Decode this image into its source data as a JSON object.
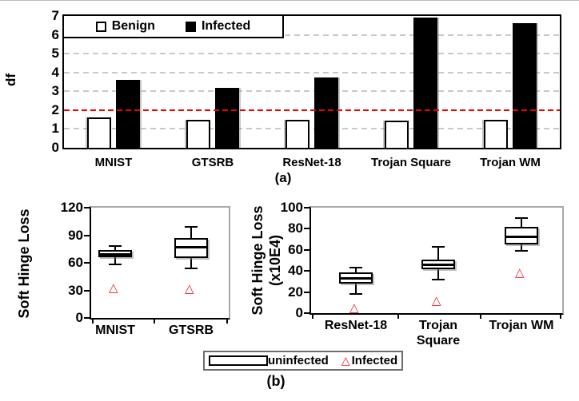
{
  "panel_a": {
    "label": "(a)"
  },
  "panel_b": {
    "label": "(b)",
    "legend": {
      "uninfected_label": "uninfected",
      "infected_label": "Infected"
    }
  },
  "icons": {
    "infected_marker_glyph": "△"
  },
  "colors": {
    "benign_bar_fill": "#ffffff",
    "infected_bar_fill": "#000000",
    "threshold_line_red": "#f00000",
    "infected_marker_red": "#ed1c24",
    "grid_gray": "#c9c9c9"
  },
  "chart_data": [
    {
      "panel": "a",
      "type": "bar",
      "ylabel": "df",
      "ylim": [
        0,
        7
      ],
      "yticks": [
        0,
        1,
        2,
        3,
        4,
        5,
        6,
        7
      ],
      "grid": "horizontal-dashed",
      "legend_position": "top-left-inside",
      "categories": [
        "MNIST",
        "GTSRB",
        "ResNet-18",
        "Trojan Square",
        "Trojan WM"
      ],
      "series": [
        {
          "name": "Benign",
          "values": [
            1.6,
            1.5,
            1.5,
            1.45,
            1.5
          ]
        },
        {
          "name": "Infected",
          "values": [
            3.6,
            3.2,
            3.75,
            6.9,
            6.6
          ]
        }
      ],
      "threshold_line": {
        "value": 2,
        "color": "#f00000",
        "style": "dashed"
      }
    },
    {
      "panel": "b-left",
      "type": "box",
      "ylabel": "Soft Hinge Loss",
      "ylim": [
        0,
        120
      ],
      "yticks": [
        0,
        30,
        60,
        90,
        120
      ],
      "categories": [
        "MNIST",
        "GTSRB"
      ],
      "category_lines": [
        [
          "MNIST"
        ],
        [
          "GTSRB"
        ]
      ],
      "boxes": [
        {
          "whisker_low": 58,
          "q1": 66,
          "median": 70,
          "q3": 74,
          "whisker_high": 78,
          "infected_value": 33
        },
        {
          "whisker_low": 54,
          "q1": 65,
          "median": 77,
          "q3": 87,
          "whisker_high": 99,
          "infected_value": 32
        }
      ]
    },
    {
      "panel": "b-right",
      "type": "box",
      "ylabel": "Soft Hinge Loss (x10E4)",
      "ylabel_lines": [
        "Soft Hinge Loss",
        "(x10E4)"
      ],
      "ylim": [
        0,
        100
      ],
      "yticks": [
        0,
        20,
        40,
        60,
        80,
        100
      ],
      "categories": [
        "ResNet-18",
        "Trojan Square",
        "Trojan WM"
      ],
      "category_lines": [
        [
          "ResNet-18"
        ],
        [
          "Trojan",
          "Square"
        ],
        [
          "Trojan WM"
        ]
      ],
      "boxes": [
        {
          "whisker_low": 18,
          "q1": 28,
          "median": 33,
          "q3": 39,
          "whisker_high": 43,
          "infected_value": 5
        },
        {
          "whisker_low": 32,
          "q1": 42,
          "median": 46,
          "q3": 51,
          "whisker_high": 63,
          "infected_value": 12
        },
        {
          "whisker_low": 59,
          "q1": 65,
          "median": 73,
          "q3": 82,
          "whisker_high": 90,
          "infected_value": 39
        }
      ]
    }
  ]
}
